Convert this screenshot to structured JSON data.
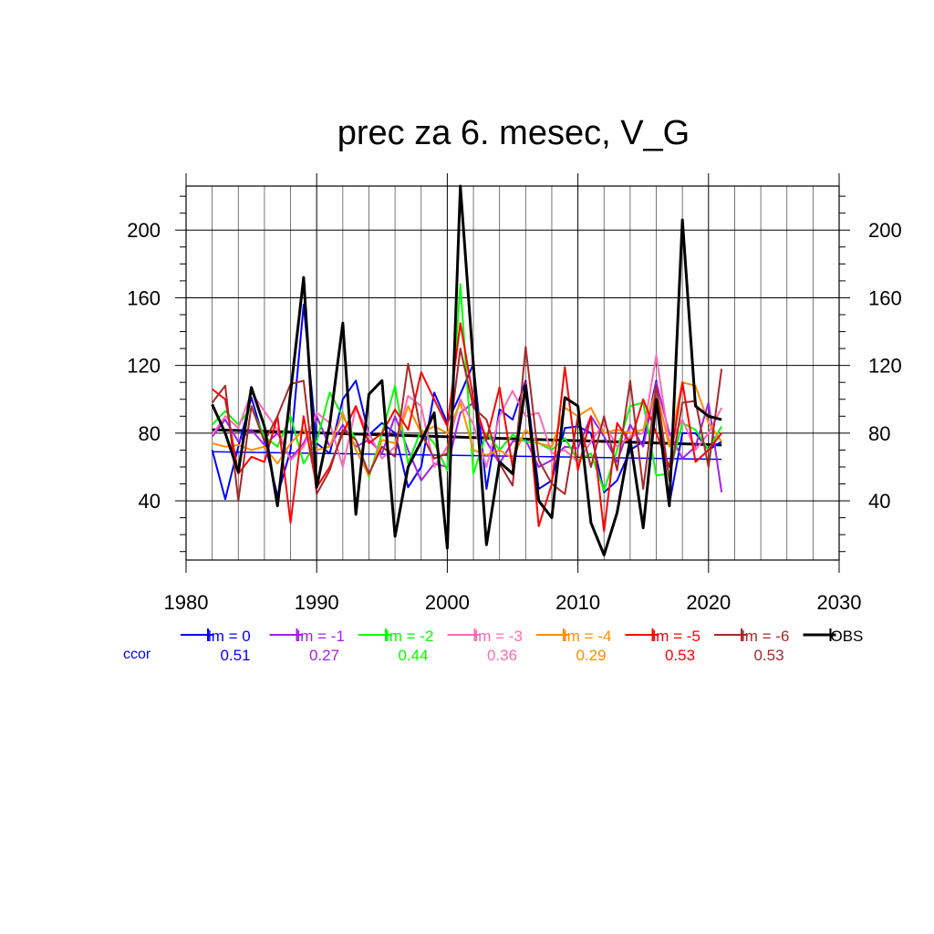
{
  "chart_data": {
    "type": "line",
    "title": "prec za 6. mesec, V_G",
    "xlabel": "",
    "ylabel": "",
    "xlim": [
      1980,
      2030
    ],
    "ylim": [
      5,
      226
    ],
    "x_ticks": [
      1980,
      1990,
      2000,
      2010,
      2020,
      2030
    ],
    "y_ticks": [
      40,
      80,
      120,
      160,
      200
    ],
    "grid": true,
    "x": [
      1982,
      1983,
      1984,
      1985,
      1986,
      1987,
      1988,
      1989,
      1990,
      1991,
      1992,
      1993,
      1994,
      1995,
      1996,
      1997,
      1998,
      1999,
      2000,
      2001,
      2002,
      2003,
      2004,
      2005,
      2006,
      2007,
      2008,
      2009,
      2010,
      2011,
      2012,
      2013,
      2014,
      2015,
      2016,
      2017,
      2018,
      2019,
      2020,
      2021
    ],
    "series": [
      {
        "name": "lm = 0",
        "color": "#0000ff",
        "corr": "0.51",
        "values": [
          70,
          41,
          72,
          101,
          75,
          43,
          70,
          156,
          74,
          68,
          100,
          111,
          79,
          86,
          80,
          48,
          60,
          104,
          86,
          103,
          121,
          47,
          94,
          88,
          111,
          47,
          52,
          83,
          84,
          80,
          45,
          52,
          70,
          75,
          111,
          38,
          80,
          80,
          70,
          75
        ],
        "trend": [
          69,
          64.5
        ]
      },
      {
        "name": "lm = -1",
        "color": "#a020f0",
        "corr": "0.27",
        "values": [
          78,
          88,
          75,
          82,
          73,
          80,
          65,
          74,
          90,
          72,
          85,
          72,
          76,
          68,
          90,
          70,
          52,
          62,
          60,
          92,
          98,
          75,
          62,
          75,
          76,
          60,
          64,
          72,
          71,
          90,
          78,
          63,
          85,
          72,
          110,
          80,
          65,
          72,
          98,
          45
        ]
      },
      {
        "name": "lm = -2",
        "color": "#00ff00",
        "corr": "0.44",
        "values": [
          85,
          93,
          85,
          95,
          78,
          72,
          90,
          62,
          75,
          104,
          90,
          76,
          54,
          80,
          108,
          62,
          82,
          74,
          58,
          168,
          56,
          80,
          70,
          79,
          75,
          74,
          70,
          77,
          64,
          68,
          46,
          70,
          96,
          98,
          55,
          56,
          86,
          82,
          70,
          84
        ]
      },
      {
        "name": "lm = -3",
        "color": "#ff69b4",
        "corr": "0.36",
        "values": [
          79,
          90,
          83,
          104,
          93,
          82,
          64,
          72,
          92,
          86,
          60,
          95,
          80,
          65,
          72,
          102,
          96,
          60,
          72,
          100,
          85,
          60,
          90,
          105,
          90,
          92,
          68,
          70,
          63,
          75,
          86,
          72,
          78,
          80,
          126,
          74,
          88,
          70,
          80,
          95
        ]
      },
      {
        "name": "lm = -4",
        "color": "#ff8c00",
        "corr": "0.29",
        "values": [
          74,
          72,
          73,
          70,
          72,
          62,
          74,
          82,
          70,
          72,
          92,
          70,
          55,
          76,
          74,
          96,
          80,
          84,
          80,
          98,
          70,
          67,
          70,
          65,
          82,
          74,
          72,
          95,
          90,
          95,
          80,
          82,
          80,
          82,
          106,
          72,
          110,
          108,
          86,
          75
        ]
      },
      {
        "name": "lm = -5",
        "color": "#ff0000",
        "corr": "0.53",
        "values": [
          106,
          100,
          56,
          66,
          63,
          90,
          27,
          90,
          48,
          60,
          80,
          96,
          74,
          80,
          94,
          82,
          116,
          100,
          84,
          145,
          100,
          76,
          107,
          60,
          110,
          25,
          50,
          119,
          58,
          90,
          22,
          86,
          74,
          100,
          80,
          60,
          110,
          63,
          70,
          80
        ]
      },
      {
        "name": "lm = -6",
        "color": "#a52a2a",
        "corr": "0.53",
        "values": [
          98,
          108,
          40,
          96,
          75,
          90,
          109,
          111,
          44,
          58,
          82,
          76,
          56,
          72,
          66,
          121,
          80,
          65,
          68,
          130,
          95,
          88,
          62,
          49,
          131,
          64,
          50,
          44,
          90,
          60,
          90,
          58,
          111,
          47,
          108,
          52,
          98,
          99,
          60,
          118
        ]
      },
      {
        "name": "OBS",
        "color": "#000000",
        "corr": "",
        "values": [
          97,
          80,
          57,
          107,
          84,
          37,
          104,
          172,
          48,
          85,
          145,
          32,
          103,
          111,
          19,
          60,
          75,
          92,
          12,
          226,
          120,
          14,
          63,
          56,
          108,
          40,
          30,
          101,
          96,
          27,
          8,
          33,
          76,
          24,
          100,
          37,
          206,
          96,
          90,
          88
        ],
        "trend": [
          82,
          73
        ]
      }
    ],
    "legend_position": "bottom",
    "corr_label": "ccor"
  }
}
